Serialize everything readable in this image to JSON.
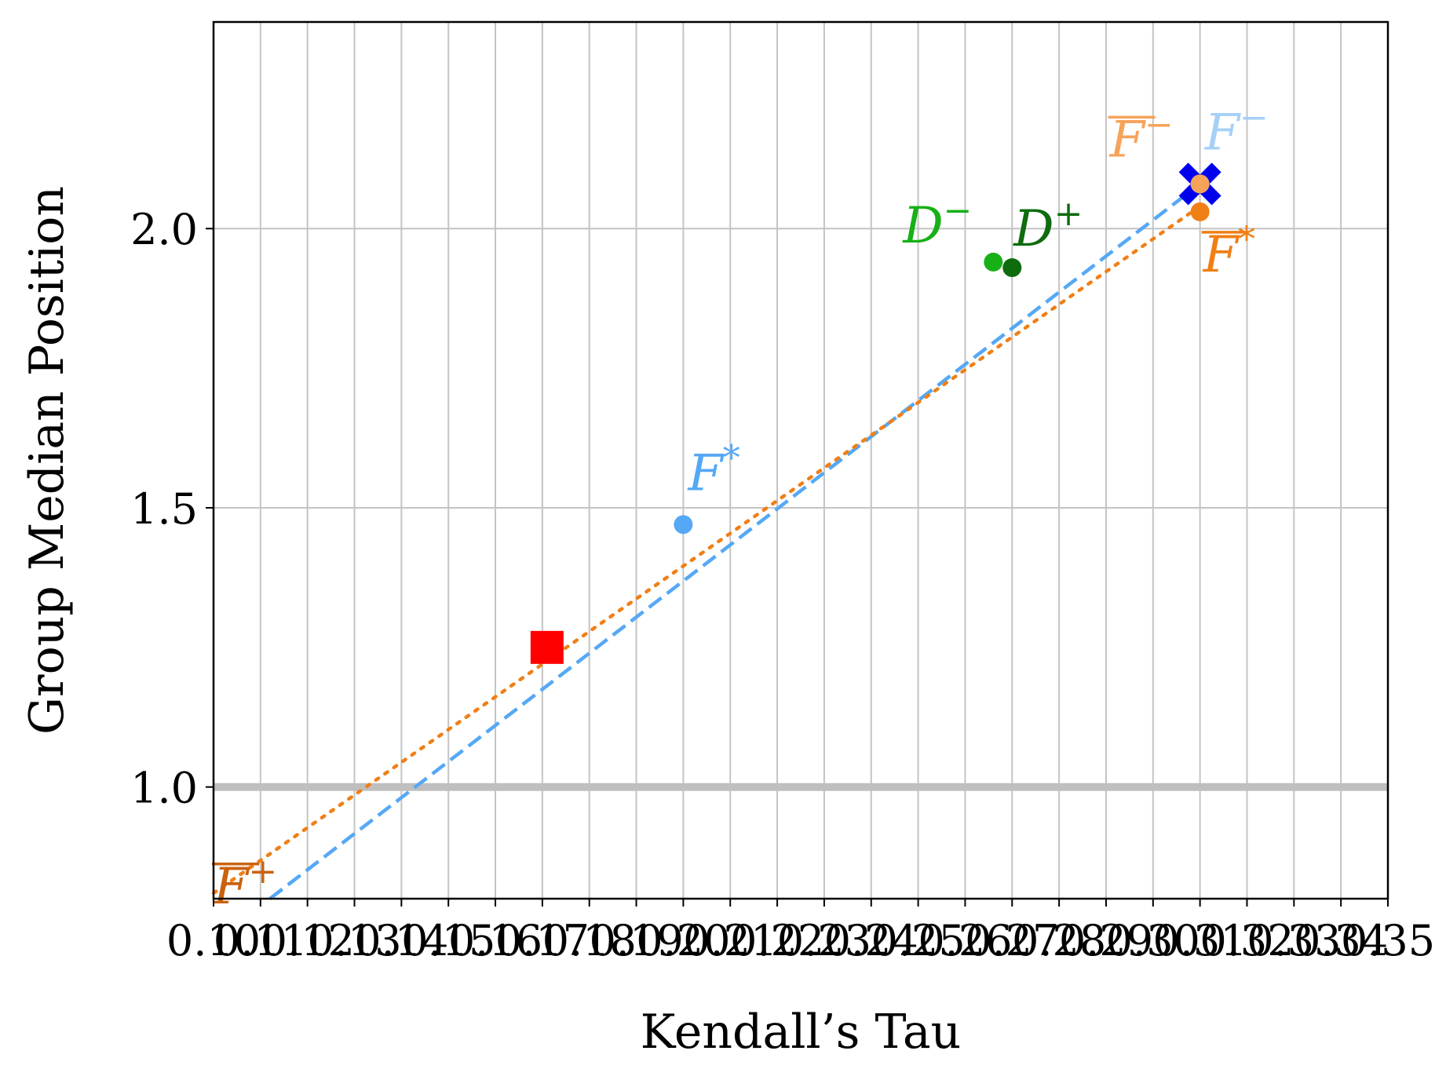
{
  "chart_data": {
    "type": "scatter",
    "xlabel": "Kendall’s Tau",
    "ylabel": "Group Median Position",
    "xlim": [
      0.1,
      0.35
    ],
    "ylim": [
      0.8,
      2.37
    ],
    "x_ticks": [
      0.1,
      0.11,
      0.12,
      0.13,
      0.14,
      0.15,
      0.16,
      0.17,
      0.18,
      0.19,
      0.2,
      0.21,
      0.22,
      0.23,
      0.24,
      0.25,
      0.26,
      0.27,
      0.28,
      0.29,
      0.3,
      0.31,
      0.32,
      0.33,
      0.34,
      0.35
    ],
    "x_tick_labels": [
      "0.10",
      "0.11",
      "0.12",
      "0.13",
      "0.14",
      "0.15",
      "0.16",
      "0.17",
      "0.18",
      "0.19",
      "0.20",
      "0.21",
      "0.22",
      "0.23",
      "0.24",
      "0.25",
      "0.26",
      "0.27",
      "0.28",
      "0.29",
      "0.30",
      "0.31",
      "0.32",
      "0.33",
      "0.34",
      "0.35"
    ],
    "y_ticks": [
      1.0,
      1.5,
      2.0
    ],
    "y_tick_labels": [
      "1.0",
      "1.5",
      "2.0"
    ],
    "grid": true,
    "reference_line": {
      "y": 1.0,
      "color": "#bfbfbf"
    },
    "colors": {
      "blue": "#55a8f5",
      "light_blue": "#a6d0f7",
      "orange": "#f07f16",
      "light_orange": "#f6a35a",
      "dark_orange": "#c9620f",
      "green": "#17b017",
      "dark_green": "#0e6b0e",
      "red": "#ff0000",
      "marker_blue": "#0000ee"
    },
    "trend_lines": [
      {
        "style": "dashed",
        "color": "#55a8f5",
        "x": [
          0.112,
          0.31
        ],
        "y": [
          0.8,
          2.08
        ]
      },
      {
        "style": "dotted",
        "color": "#f07f16",
        "x": [
          0.1,
          0.31
        ],
        "y": [
          0.81,
          2.04
        ]
      }
    ],
    "points": [
      {
        "name": "F*",
        "base": "F",
        "sup": "*",
        "overline": false,
        "x": 0.2,
        "y": 1.47,
        "marker": "circle",
        "color": "#55a8f5",
        "label_color": "#55a8f5"
      },
      {
        "name": "F−",
        "base": "F",
        "sup": "−",
        "overline": false,
        "x": 0.31,
        "y": 2.08,
        "marker": "circle",
        "color": "#a6d0f7",
        "label_color": "#a6d0f7"
      },
      {
        "name": "F̄*",
        "base": "F",
        "sup": "*",
        "overline": true,
        "x": 0.31,
        "y": 2.03,
        "marker": "circle",
        "color": "#f07f16",
        "label_color": "#f07f16"
      },
      {
        "name": "F̄−",
        "base": "F",
        "sup": "−",
        "overline": true,
        "x": 0.31,
        "y": 2.08,
        "marker": "circle",
        "color": "#f6a35a",
        "label_color": "#f6a35a"
      },
      {
        "name": "F̄+",
        "base": "F",
        "sup": "+",
        "overline": true,
        "x": 0.1,
        "y": 0.82,
        "marker": "none",
        "color": "#c9620f",
        "label_color": "#c9620f"
      },
      {
        "name": "D−",
        "base": "D",
        "sup": "−",
        "overline": false,
        "x": 0.266,
        "y": 1.94,
        "marker": "circle",
        "color": "#17b017",
        "label_color": "#17b017"
      },
      {
        "name": "D+",
        "base": "D",
        "sup": "+",
        "overline": false,
        "x": 0.27,
        "y": 1.93,
        "marker": "circle",
        "color": "#0e6b0e",
        "label_color": "#0e6b0e"
      },
      {
        "name": "",
        "x": 0.171,
        "y": 1.25,
        "marker": "square",
        "color": "#ff0000"
      },
      {
        "name": "",
        "x": 0.31,
        "y": 2.08,
        "marker": "x",
        "color": "#0000ee"
      }
    ]
  }
}
